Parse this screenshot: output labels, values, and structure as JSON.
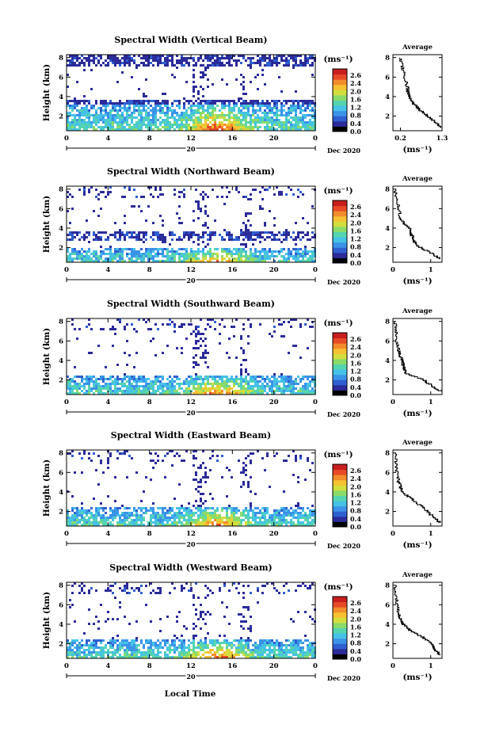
{
  "panels": [
    {
      "title": "Spectral Width (Vertical Beam)",
      "avg_x_ticks": [
        "0.2",
        "1.3"
      ],
      "avg_x_domain": [
        0,
        1.3
      ],
      "avg_tick_values": [
        0.2,
        1.3
      ]
    },
    {
      "title": "Spectral Width (Northward Beam)",
      "avg_x_ticks": [
        "0",
        "1"
      ],
      "avg_x_domain": [
        0,
        1.3
      ],
      "avg_tick_values": [
        0,
        1
      ]
    },
    {
      "title": "Spectral Width (Southward Beam)",
      "avg_x_ticks": [
        "0",
        "1"
      ],
      "avg_x_domain": [
        0,
        1.3
      ],
      "avg_tick_values": [
        0,
        1
      ]
    },
    {
      "title": "Spectral Width (Eastward Beam)",
      "avg_x_ticks": [
        "0",
        "1"
      ],
      "avg_x_domain": [
        0,
        1.3
      ],
      "avg_tick_values": [
        0,
        1
      ]
    },
    {
      "title": "Spectral Width (Westward Beam)",
      "avg_x_ticks": [
        "0",
        "1"
      ],
      "avg_x_domain": [
        0,
        1.3
      ],
      "avg_tick_values": [
        0,
        1
      ]
    }
  ],
  "labels": {
    "ylabel": "Height (km)",
    "xlabel": "Local Time",
    "date_main": "20",
    "date_right": "Dec 2020",
    "colorbar_unit": "(ms⁻¹)",
    "avg_title": "Average",
    "avg_unit": "(ms⁻¹)"
  },
  "axes": {
    "x_ticks": [
      "0",
      "4",
      "8",
      "12",
      "16",
      "20",
      "0"
    ],
    "x_tick_values": [
      0,
      4,
      8,
      12,
      16,
      20,
      24
    ],
    "y_ticks": [
      "2",
      "4",
      "6",
      "8"
    ],
    "y_tick_values": [
      2,
      4,
      6,
      8
    ],
    "xlim": [
      0,
      24
    ],
    "ylim": [
      0.5,
      8.3
    ]
  },
  "colorbar": {
    "ticks": [
      "2.6",
      "2.4",
      "2.0",
      "1.6",
      "1.2",
      "0.8",
      "0.4",
      "0.0"
    ],
    "range": [
      0,
      2.8
    ],
    "colors": [
      "#000000",
      "#2b2b9a",
      "#2f5fd0",
      "#3b93e8",
      "#45c2e6",
      "#55d4b0",
      "#8adb6a",
      "#d2de3e",
      "#f6c232",
      "#f38c2c",
      "#e84a27",
      "#c81e1e"
    ]
  },
  "chart_data": [
    {
      "type": "heatmap",
      "title": "Spectral Width (Vertical Beam)",
      "xlabel": "",
      "ylabel": "Height (km)",
      "xlim": [
        0,
        24
      ],
      "ylim": [
        0.5,
        8.3
      ],
      "colorbar_range": [
        0,
        2.8
      ],
      "avg_profile": {
        "type": "line",
        "title": "Average",
        "x": [
          1.25,
          1.1,
          0.9,
          0.7,
          0.55,
          0.45,
          0.4,
          0.38,
          0.3,
          0.25,
          0.2
        ],
        "y": [
          0.8,
          1.4,
          2.0,
          2.6,
          3.2,
          3.8,
          4.4,
          5.0,
          6.0,
          7.0,
          8.0
        ]
      }
    },
    {
      "type": "heatmap",
      "title": "Spectral Width (Northward Beam)",
      "xlabel": "",
      "ylabel": "Height (km)",
      "xlim": [
        0,
        24
      ],
      "ylim": [
        0.5,
        8.3
      ],
      "colorbar_range": [
        0,
        2.8
      ],
      "avg_profile": {
        "type": "line",
        "title": "Average",
        "x": [
          1.25,
          1.0,
          0.7,
          0.55,
          0.5,
          0.45,
          0.3,
          0.2,
          0.15,
          0.1,
          0.05
        ],
        "y": [
          0.8,
          1.4,
          2.0,
          2.6,
          3.2,
          3.8,
          4.4,
          5.0,
          6.0,
          7.0,
          8.0
        ]
      }
    },
    {
      "type": "heatmap",
      "title": "Spectral Width (Southward Beam)",
      "xlabel": "",
      "ylabel": "Height (km)",
      "xlim": [
        0,
        24
      ],
      "ylim": [
        0.5,
        8.3
      ],
      "colorbar_range": [
        0,
        2.8
      ],
      "avg_profile": {
        "type": "line",
        "title": "Average",
        "x": [
          1.25,
          1.0,
          0.8,
          0.35,
          0.3,
          0.25,
          0.2,
          0.15,
          0.1,
          0.08,
          0.05
        ],
        "y": [
          0.8,
          1.4,
          2.0,
          2.6,
          3.2,
          3.8,
          4.4,
          5.0,
          6.0,
          7.0,
          8.0
        ]
      }
    },
    {
      "type": "heatmap",
      "title": "Spectral Width (Eastward Beam)",
      "xlabel": "",
      "ylabel": "Height (km)",
      "xlim": [
        0,
        24
      ],
      "ylim": [
        0.5,
        8.3
      ],
      "colorbar_range": [
        0,
        2.8
      ],
      "avg_profile": {
        "type": "line",
        "title": "Average",
        "x": [
          1.25,
          1.05,
          0.9,
          0.7,
          0.5,
          0.3,
          0.2,
          0.15,
          0.1,
          0.08,
          0.05
        ],
        "y": [
          0.8,
          1.4,
          2.0,
          2.6,
          3.2,
          3.8,
          4.4,
          5.0,
          6.0,
          7.0,
          8.0
        ]
      }
    },
    {
      "type": "heatmap",
      "title": "Spectral Width (Westward Beam)",
      "xlabel": "Local Time",
      "ylabel": "Height (km)",
      "xlim": [
        0,
        24
      ],
      "ylim": [
        0.5,
        8.3
      ],
      "colorbar_range": [
        0,
        2.8
      ],
      "avg_profile": {
        "type": "line",
        "title": "Average",
        "x": [
          1.25,
          1.1,
          1.0,
          0.8,
          0.5,
          0.3,
          0.2,
          0.15,
          0.1,
          0.08,
          0.05
        ],
        "y": [
          0.8,
          1.4,
          2.0,
          2.6,
          3.2,
          3.8,
          4.4,
          5.0,
          6.0,
          7.0,
          8.0
        ]
      }
    }
  ]
}
